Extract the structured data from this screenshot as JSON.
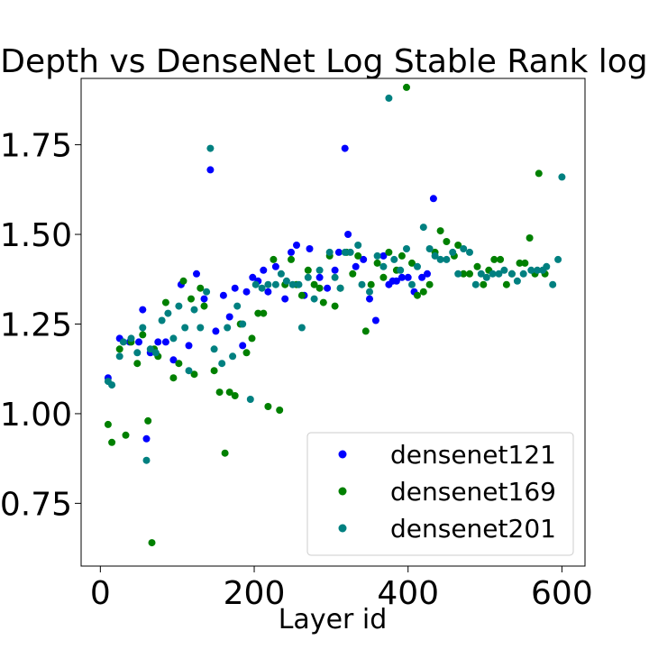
{
  "chart_data": {
    "type": "scatter",
    "title": "Depth vs DenseNet Log Stable Rank log 𝓡",
    "xlabel": "Layer id",
    "ylabel": "",
    "xlim": [
      -25,
      630
    ],
    "ylim": [
      0.575,
      1.935
    ],
    "xticks": [
      0,
      200,
      400,
      600
    ],
    "yticks": [
      0.75,
      1.0,
      1.25,
      1.5,
      1.75
    ],
    "ytick_labels": [
      "0.75",
      "1.00",
      "1.25",
      "1.50",
      "1.75"
    ],
    "grid": false,
    "legend_position": "lower-right",
    "series": [
      {
        "name": "densenet121",
        "color": "#0000ff",
        "points": [
          [
            10,
            1.1
          ],
          [
            25,
            1.21
          ],
          [
            38,
            1.2
          ],
          [
            50,
            1.2
          ],
          [
            55,
            1.29
          ],
          [
            60,
            0.93
          ],
          [
            65,
            1.17
          ],
          [
            75,
            1.2
          ],
          [
            85,
            1.2
          ],
          [
            95,
            1.15
          ],
          [
            105,
            1.36
          ],
          [
            115,
            1.19
          ],
          [
            125,
            1.39
          ],
          [
            135,
            1.32
          ],
          [
            143,
            1.68
          ],
          [
            150,
            1.23
          ],
          [
            160,
            1.33
          ],
          [
            168,
            1.27
          ],
          [
            175,
            1.35
          ],
          [
            185,
            1.19
          ],
          [
            190,
            1.34
          ],
          [
            198,
            1.38
          ],
          [
            205,
            1.37
          ],
          [
            212,
            1.4
          ],
          [
            218,
            1.34
          ],
          [
            228,
            1.41
          ],
          [
            240,
            1.32
          ],
          [
            248,
            1.45
          ],
          [
            255,
            1.47
          ],
          [
            265,
            1.33
          ],
          [
            272,
            1.46
          ],
          [
            285,
            1.38
          ],
          [
            295,
            1.35
          ],
          [
            305,
            1.4
          ],
          [
            310,
            1.45
          ],
          [
            318,
            1.74
          ],
          [
            322,
            1.5
          ],
          [
            332,
            1.41
          ],
          [
            342,
            1.43
          ],
          [
            350,
            1.32
          ],
          [
            358,
            1.26
          ],
          [
            368,
            1.44
          ],
          [
            375,
            1.36
          ],
          [
            380,
            1.37
          ],
          [
            385,
            1.37
          ],
          [
            392,
            1.38
          ],
          [
            400,
            1.38
          ],
          [
            408,
            1.34
          ],
          [
            418,
            1.38
          ],
          [
            425,
            1.39
          ],
          [
            433,
            1.6
          ]
        ]
      },
      {
        "name": "densenet169",
        "color": "#008000",
        "points": [
          [
            10,
            0.97
          ],
          [
            15,
            0.92
          ],
          [
            25,
            1.18
          ],
          [
            33,
            0.94
          ],
          [
            40,
            1.2
          ],
          [
            48,
            1.14
          ],
          [
            55,
            1.22
          ],
          [
            62,
            0.98
          ],
          [
            67,
            0.64
          ],
          [
            70,
            1.18
          ],
          [
            75,
            1.16
          ],
          [
            85,
            1.31
          ],
          [
            95,
            1.1
          ],
          [
            102,
            1.14
          ],
          [
            108,
            1.37
          ],
          [
            118,
            1.32
          ],
          [
            122,
            1.11
          ],
          [
            130,
            1.35
          ],
          [
            135,
            1.3
          ],
          [
            148,
            1.12
          ],
          [
            155,
            1.06
          ],
          [
            162,
            0.89
          ],
          [
            168,
            1.06
          ],
          [
            175,
            1.05
          ],
          [
            182,
            1.25
          ],
          [
            190,
            1.17
          ],
          [
            197,
            1.21
          ],
          [
            205,
            1.28
          ],
          [
            212,
            1.28
          ],
          [
            218,
            1.02
          ],
          [
            225,
            1.43
          ],
          [
            233,
            1.01
          ],
          [
            240,
            1.36
          ],
          [
            248,
            1.43
          ],
          [
            255,
            1.36
          ],
          [
            262,
            1.33
          ],
          [
            270,
            1.4
          ],
          [
            278,
            1.36
          ],
          [
            285,
            1.35
          ],
          [
            290,
            1.31
          ],
          [
            298,
            1.44
          ],
          [
            305,
            1.3
          ],
          [
            312,
            1.35
          ],
          [
            320,
            1.45
          ],
          [
            328,
            1.39
          ],
          [
            335,
            1.44
          ],
          [
            345,
            1.23
          ],
          [
            352,
            1.36
          ],
          [
            360,
            1.42
          ],
          [
            368,
            1.38
          ],
          [
            375,
            1.45
          ],
          [
            385,
            1.4
          ],
          [
            392,
            1.44
          ],
          [
            398,
            1.91
          ],
          [
            405,
            1.42
          ],
          [
            412,
            1.33
          ],
          [
            420,
            1.34
          ],
          [
            428,
            1.36
          ],
          [
            435,
            1.45
          ],
          [
            442,
            1.51
          ],
          [
            450,
            1.48
          ],
          [
            460,
            1.44
          ],
          [
            465,
            1.47
          ],
          [
            472,
            1.39
          ],
          [
            480,
            1.39
          ],
          [
            490,
            1.41
          ],
          [
            498,
            1.36
          ],
          [
            505,
            1.4
          ],
          [
            512,
            1.43
          ],
          [
            520,
            1.43
          ],
          [
            528,
            1.36
          ],
          [
            535,
            1.39
          ],
          [
            545,
            1.42
          ],
          [
            552,
            1.42
          ],
          [
            558,
            1.49
          ],
          [
            565,
            1.39
          ],
          [
            570,
            1.67
          ],
          [
            578,
            1.39
          ]
        ]
      },
      {
        "name": "densenet201",
        "color": "#008080",
        "points": [
          [
            10,
            1.09
          ],
          [
            15,
            1.08
          ],
          [
            25,
            1.16
          ],
          [
            30,
            1.2
          ],
          [
            40,
            1.21
          ],
          [
            48,
            1.17
          ],
          [
            55,
            1.24
          ],
          [
            60,
            0.87
          ],
          [
            65,
            1.18
          ],
          [
            72,
            1.17
          ],
          [
            80,
            1.26
          ],
          [
            88,
            1.28
          ],
          [
            95,
            1.21
          ],
          [
            102,
            1.3
          ],
          [
            110,
            1.24
          ],
          [
            115,
            1.12
          ],
          [
            122,
            1.29
          ],
          [
            130,
            1.24
          ],
          [
            138,
            1.34
          ],
          [
            143,
            1.74
          ],
          [
            148,
            1.18
          ],
          [
            158,
            1.14
          ],
          [
            165,
            1.24
          ],
          [
            172,
            1.16
          ],
          [
            178,
            1.3
          ],
          [
            185,
            1.25
          ],
          [
            195,
            1.04
          ],
          [
            202,
            1.36
          ],
          [
            210,
            1.35
          ],
          [
            218,
            1.36
          ],
          [
            228,
            1.36
          ],
          [
            235,
            1.39
          ],
          [
            242,
            1.37
          ],
          [
            250,
            1.36
          ],
          [
            258,
            1.36
          ],
          [
            262,
            1.24
          ],
          [
            270,
            1.38
          ],
          [
            278,
            1.32
          ],
          [
            285,
            1.4
          ],
          [
            298,
            1.45
          ],
          [
            305,
            1.38
          ],
          [
            312,
            1.35
          ],
          [
            318,
            1.45
          ],
          [
            325,
            1.45
          ],
          [
            335,
            1.47
          ],
          [
            340,
            1.36
          ],
          [
            350,
            1.34
          ],
          [
            360,
            1.44
          ],
          [
            368,
            1.41
          ],
          [
            375,
            1.88
          ],
          [
            382,
            1.43
          ],
          [
            390,
            1.4
          ],
          [
            398,
            1.46
          ],
          [
            405,
            1.36
          ],
          [
            412,
            1.41
          ],
          [
            420,
            1.52
          ],
          [
            428,
            1.46
          ],
          [
            435,
            1.44
          ],
          [
            442,
            1.43
          ],
          [
            450,
            1.43
          ],
          [
            458,
            1.45
          ],
          [
            465,
            1.39
          ],
          [
            472,
            1.46
          ],
          [
            480,
            1.45
          ],
          [
            488,
            1.36
          ],
          [
            495,
            1.39
          ],
          [
            502,
            1.38
          ],
          [
            510,
            1.39
          ],
          [
            518,
            1.39
          ],
          [
            525,
            1.4
          ],
          [
            535,
            1.39
          ],
          [
            542,
            1.37
          ],
          [
            550,
            1.39
          ],
          [
            560,
            1.4
          ],
          [
            568,
            1.4
          ],
          [
            575,
            1.4
          ],
          [
            580,
            1.41
          ],
          [
            588,
            1.36
          ],
          [
            595,
            1.43
          ],
          [
            600,
            1.66
          ]
        ]
      }
    ]
  }
}
